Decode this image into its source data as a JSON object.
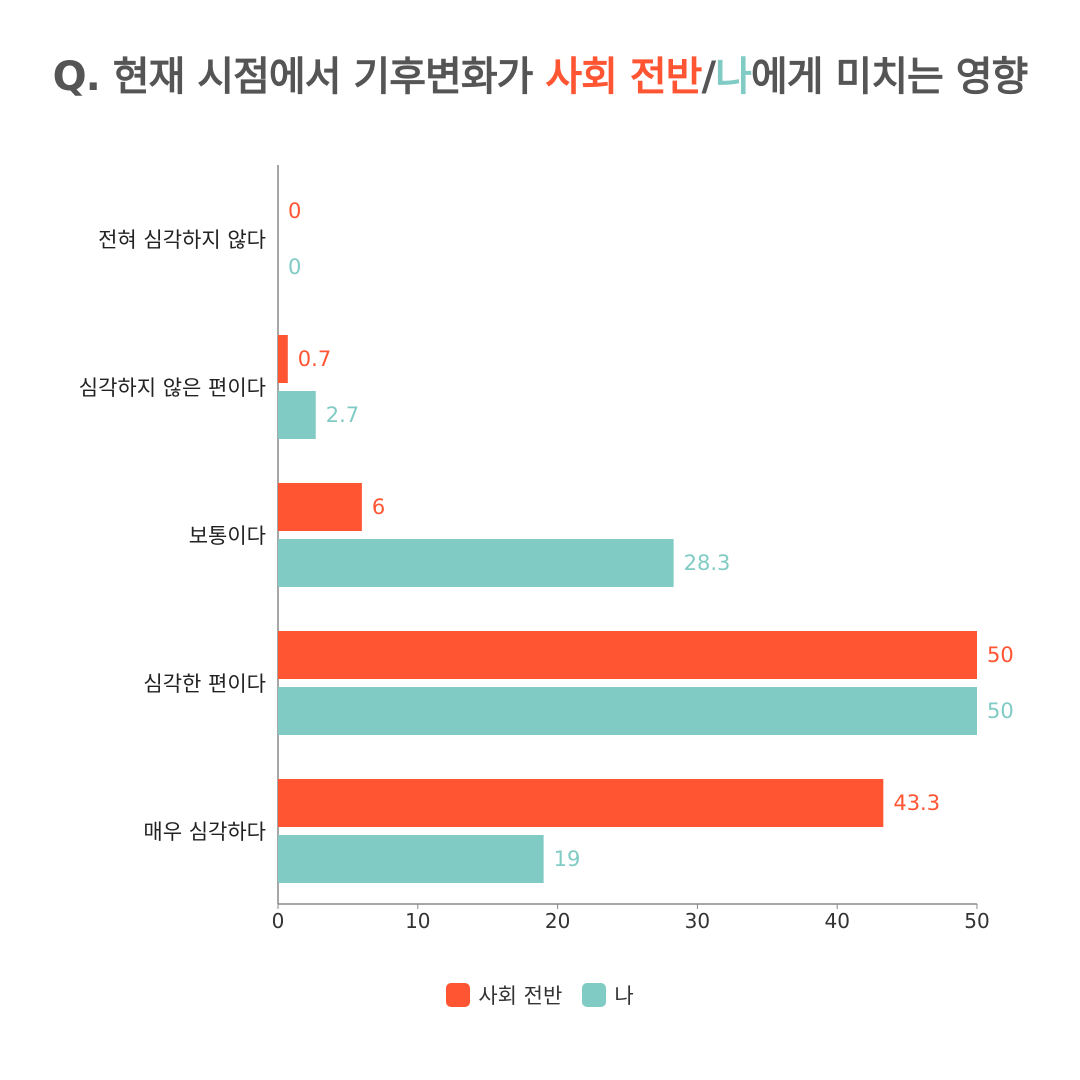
{
  "title": {
    "prefix": "Q. 현재 시점에서 기후변화가 ",
    "highlight_society": "사회 전반",
    "slash": "/",
    "highlight_me": "나",
    "suffix": "에게 미치는 영향"
  },
  "colors": {
    "society": "#ff5533",
    "me": "#80cbc4",
    "title": "#555555",
    "axis": "#888888"
  },
  "chart_data": {
    "type": "bar",
    "orientation": "horizontal",
    "categories": [
      "전혀 심각하지 않다",
      "심각하지 않은 편이다",
      "보통이다",
      "심각한 편이다",
      "매우 심각하다"
    ],
    "series": [
      {
        "name": "사회 전반",
        "values": [
          0,
          0.7,
          6,
          50,
          43.3
        ]
      },
      {
        "name": "나",
        "values": [
          0,
          2.7,
          28.3,
          50,
          19
        ]
      }
    ],
    "value_labels": [
      [
        "0",
        "0.7",
        "6",
        "50",
        "43.3"
      ],
      [
        "0",
        "2.7",
        "28.3",
        "50",
        "19"
      ]
    ],
    "xlim": [
      0,
      50
    ],
    "xticks": [
      "0",
      "10",
      "20",
      "30",
      "40",
      "50"
    ],
    "grid": false,
    "legend_position": "bottom"
  }
}
